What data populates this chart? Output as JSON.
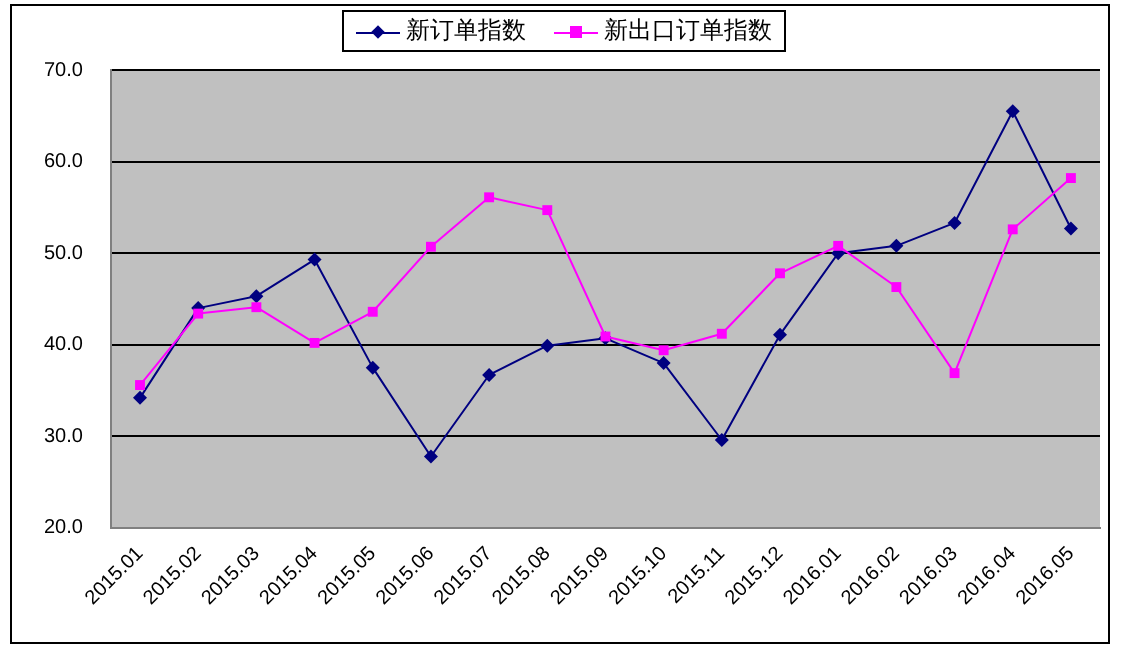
{
  "chart_data": {
    "type": "line",
    "categories": [
      "2015.01",
      "2015.02",
      "2015.03",
      "2015.04",
      "2015.05",
      "2015.06",
      "2015.07",
      "2015.08",
      "2015.09",
      "2015.10",
      "2015.11",
      "2015.12",
      "2016.01",
      "2016.02",
      "2016.03",
      "2016.04",
      "2016.05"
    ],
    "series": [
      {
        "name": "新订单指数",
        "color": "#000080",
        "marker": "diamond",
        "values": [
          34.2,
          44.0,
          45.3,
          49.3,
          37.5,
          27.8,
          36.7,
          39.9,
          40.7,
          38.0,
          29.6,
          41.1,
          50.0,
          50.8,
          53.3,
          65.5,
          52.7
        ]
      },
      {
        "name": "新出口订单指数",
        "color": "#ff00ff",
        "marker": "square",
        "values": [
          35.6,
          43.4,
          44.1,
          40.2,
          43.6,
          50.7,
          56.1,
          54.7,
          40.9,
          39.4,
          41.2,
          47.8,
          50.8,
          46.3,
          36.9,
          52.6,
          58.2
        ]
      }
    ],
    "ylim": [
      20,
      70
    ],
    "yticks": [
      {
        "value": 20,
        "label": "20.0"
      },
      {
        "value": 30,
        "label": "30.0"
      },
      {
        "value": 40,
        "label": "40.0"
      },
      {
        "value": 50,
        "label": "50.0"
      },
      {
        "value": 60,
        "label": "60.0"
      },
      {
        "value": 70,
        "label": "70.0"
      }
    ],
    "grid": "y",
    "legend": "top"
  }
}
